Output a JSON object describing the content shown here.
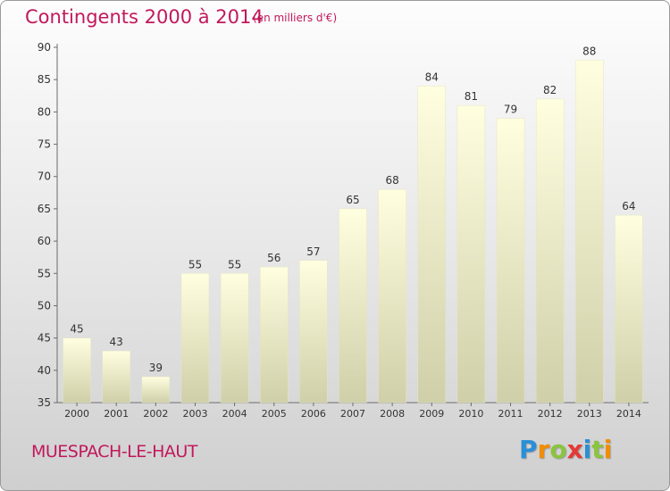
{
  "header": {
    "title": "Contingents 2000 à 2014",
    "subtitle": "(en milliers d'€)"
  },
  "footer": {
    "place": "MUESPACH-LE-HAUT"
  },
  "brand": {
    "letters": [
      "P",
      "r",
      "o",
      "x",
      "i",
      "t",
      "i"
    ],
    "colors": [
      "#2a8fd6",
      "#f28c00",
      "#8bc43f",
      "#e53935",
      "#2a8fd6",
      "#8bc43f",
      "#f28c00"
    ]
  },
  "colors": {
    "accent": "#c2185b",
    "bar_top": "#ffffe0",
    "bar_bottom": "#cfcfa9",
    "axis": "#6b6b6b"
  },
  "chart_data": {
    "type": "bar",
    "categories": [
      "2000",
      "2001",
      "2002",
      "2003",
      "2004",
      "2005",
      "2006",
      "2007",
      "2008",
      "2009",
      "2010",
      "2011",
      "2012",
      "2013",
      "2014"
    ],
    "values": [
      45,
      43,
      39,
      55,
      55,
      56,
      57,
      65,
      68,
      84,
      81,
      79,
      82,
      88,
      64
    ],
    "ylim": [
      35,
      90
    ],
    "yticks": [
      35,
      40,
      45,
      50,
      55,
      60,
      65,
      70,
      75,
      80,
      85,
      90
    ],
    "grid": false,
    "data_labels": true
  }
}
